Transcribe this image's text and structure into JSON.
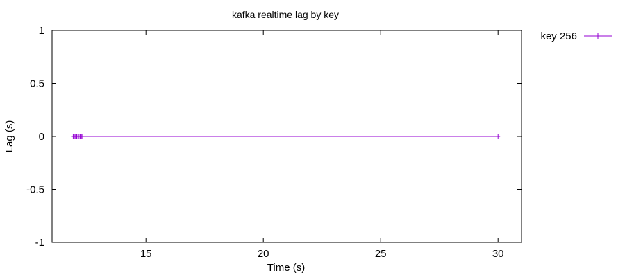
{
  "chart_data": {
    "type": "line",
    "title": "kafka realtime lag by key",
    "xlabel": "Time (s)",
    "ylabel": "Lag (s)",
    "xlim": [
      11,
      31
    ],
    "ylim": [
      -1,
      1
    ],
    "xticks": [
      15,
      20,
      25,
      30
    ],
    "yticks": [
      1,
      0.5,
      0,
      -0.5,
      -1
    ],
    "xtick_labels": [
      "15",
      "20",
      "25",
      "30"
    ],
    "ytick_labels": [
      "1",
      "0.5",
      "0",
      "-0.5",
      "-1"
    ],
    "legend_position": "outside-top-right",
    "grid": false,
    "series": [
      {
        "name": "key 256",
        "color": "#9400d3",
        "marker": "plus",
        "x": [
          11.9,
          11.95,
          12.0,
          12.05,
          12.1,
          12.15,
          12.2,
          12.25,
          12.3,
          30.0
        ],
        "y": [
          0,
          0,
          0,
          0,
          0,
          0,
          0,
          0,
          0,
          0
        ]
      }
    ]
  }
}
